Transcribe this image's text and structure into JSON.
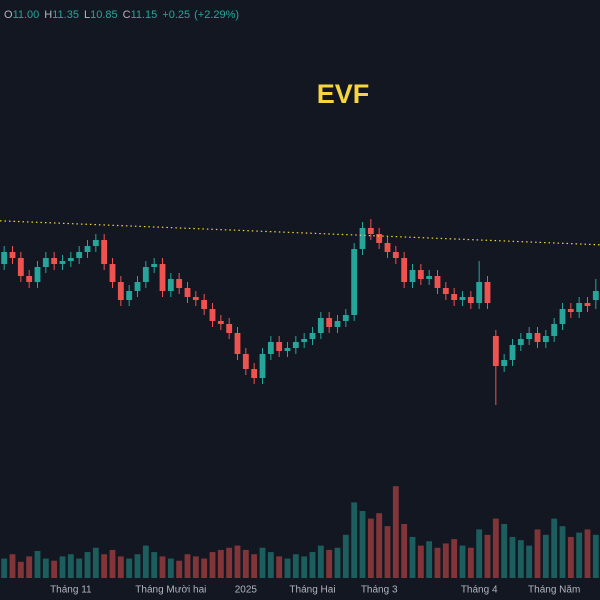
{
  "chart_data": {
    "type": "candlestick",
    "title": "EVF",
    "header": {
      "labels": [
        "O",
        "H",
        "L",
        "C"
      ],
      "values": [
        11.0,
        11.35,
        10.85,
        11.15
      ],
      "value_labels": [
        "11.00",
        "11.35",
        "10.85",
        "11.15"
      ],
      "change": 0.25,
      "change_label": "+0.25",
      "change_pct": 2.29,
      "change_pct_label": "(+2.29%)"
    },
    "categories": [
      null,
      null,
      null,
      null,
      null,
      null,
      null,
      null,
      "Tháng 11",
      null,
      null,
      null,
      null,
      null,
      null,
      null,
      null,
      null,
      null,
      null,
      "Tháng Mười hai",
      null,
      null,
      null,
      null,
      null,
      null,
      null,
      null,
      "2025",
      null,
      null,
      null,
      null,
      null,
      null,
      null,
      "Tháng Hai",
      null,
      null,
      null,
      null,
      null,
      null,
      null,
      "Tháng 3",
      null,
      null,
      null,
      null,
      null,
      null,
      null,
      null,
      null,
      null,
      null,
      "Tháng 4",
      null,
      null,
      null,
      null,
      null,
      null,
      null,
      null,
      "Tháng Năm",
      null,
      null,
      null,
      null,
      null
    ],
    "open": [
      11.6,
      11.8,
      11.7,
      11.4,
      11.3,
      11.55,
      11.7,
      11.6,
      11.65,
      11.7,
      11.8,
      11.9,
      12.0,
      11.6,
      11.3,
      11.0,
      11.15,
      11.3,
      11.55,
      11.6,
      11.15,
      11.35,
      11.2,
      11.05,
      11.0,
      10.85,
      10.65,
      10.6,
      10.45,
      10.1,
      9.85,
      9.7,
      10.1,
      10.3,
      10.15,
      10.2,
      10.3,
      10.35,
      10.45,
      10.7,
      10.55,
      10.65,
      10.75,
      11.85,
      12.2,
      12.1,
      11.95,
      11.8,
      11.7,
      11.3,
      11.5,
      11.35,
      11.4,
      11.2,
      11.1,
      11.0,
      11.05,
      10.95,
      11.3,
      10.4,
      9.9,
      10.0,
      10.25,
      10.35,
      10.45,
      10.3,
      10.4,
      10.6,
      10.85,
      10.8,
      10.95,
      11.0
    ],
    "high": [
      11.9,
      11.9,
      11.8,
      11.5,
      11.65,
      11.8,
      11.8,
      11.75,
      11.8,
      11.9,
      12.0,
      12.1,
      12.1,
      11.7,
      11.4,
      11.25,
      11.4,
      11.65,
      11.7,
      11.7,
      11.45,
      11.45,
      11.3,
      11.15,
      11.1,
      10.95,
      10.75,
      10.7,
      10.55,
      10.2,
      9.95,
      10.2,
      10.4,
      10.4,
      10.3,
      10.4,
      10.45,
      10.55,
      10.8,
      10.8,
      10.75,
      10.85,
      11.95,
      12.3,
      12.35,
      12.2,
      12.05,
      11.9,
      11.8,
      11.6,
      11.6,
      11.5,
      11.5,
      11.3,
      11.2,
      11.15,
      11.15,
      11.65,
      11.4,
      10.5,
      10.1,
      10.35,
      10.45,
      10.55,
      10.55,
      10.5,
      10.7,
      10.95,
      10.95,
      11.05,
      11.05,
      11.35
    ],
    "low": [
      11.5,
      11.6,
      11.3,
      11.2,
      11.2,
      11.45,
      11.5,
      11.5,
      11.55,
      11.6,
      11.7,
      11.8,
      11.5,
      11.2,
      10.9,
      10.9,
      11.05,
      11.2,
      11.45,
      11.05,
      11.05,
      11.1,
      10.95,
      10.9,
      10.75,
      10.55,
      10.5,
      10.35,
      10.0,
      9.75,
      9.6,
      9.6,
      10.0,
      10.05,
      10.05,
      10.1,
      10.2,
      10.25,
      10.35,
      10.45,
      10.45,
      10.55,
      10.65,
      11.75,
      12.0,
      11.85,
      11.7,
      11.6,
      11.2,
      11.2,
      11.25,
      11.25,
      11.1,
      11.0,
      10.9,
      10.9,
      10.85,
      10.85,
      10.85,
      9.25,
      9.8,
      9.9,
      10.15,
      10.25,
      10.2,
      10.2,
      10.3,
      10.5,
      10.7,
      10.7,
      10.8,
      10.85
    ],
    "close": [
      11.8,
      11.7,
      11.4,
      11.3,
      11.55,
      11.7,
      11.6,
      11.65,
      11.7,
      11.8,
      11.9,
      12.0,
      11.6,
      11.3,
      11.0,
      11.15,
      11.3,
      11.55,
      11.6,
      11.15,
      11.35,
      11.2,
      11.05,
      11.0,
      10.85,
      10.65,
      10.6,
      10.45,
      10.1,
      9.85,
      9.7,
      10.1,
      10.3,
      10.15,
      10.2,
      10.3,
      10.35,
      10.45,
      10.7,
      10.55,
      10.65,
      10.75,
      11.85,
      12.2,
      12.1,
      11.95,
      11.8,
      11.7,
      11.3,
      11.5,
      11.35,
      11.4,
      11.2,
      11.1,
      11.0,
      11.05,
      10.95,
      11.3,
      10.95,
      9.9,
      10.0,
      10.25,
      10.35,
      10.45,
      10.3,
      10.4,
      10.6,
      10.85,
      10.8,
      10.95,
      10.9,
      11.15
    ],
    "volume": [
      18,
      22,
      15,
      20,
      25,
      18,
      16,
      20,
      22,
      18,
      24,
      28,
      22,
      26,
      20,
      18,
      22,
      30,
      24,
      20,
      18,
      16,
      22,
      20,
      18,
      24,
      26,
      28,
      30,
      26,
      22,
      28,
      24,
      20,
      18,
      22,
      20,
      24,
      30,
      26,
      28,
      40,
      70,
      62,
      55,
      60,
      48,
      85,
      50,
      38,
      30,
      34,
      28,
      32,
      36,
      30,
      28,
      45,
      40,
      55,
      50,
      38,
      35,
      30,
      45,
      40,
      55,
      48,
      38,
      42,
      45,
      40
    ],
    "ylim": [
      8,
      16
    ],
    "volume_lim": [
      0,
      100
    ],
    "up_color": "#26a69a",
    "down_color": "#ef5350",
    "trendline": {
      "values": [
        12.32,
        11.92
      ],
      "color": "#f5d63c",
      "style": "dotted"
    }
  }
}
